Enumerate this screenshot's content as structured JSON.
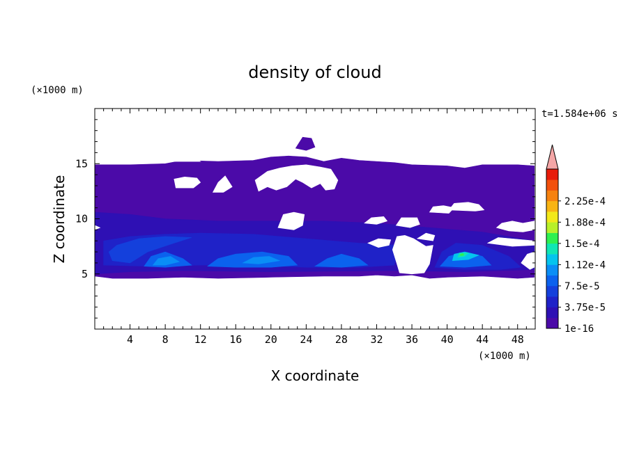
{
  "chart_data": {
    "type": "heatmap",
    "title": "density of cloud",
    "xlabel": "X coordinate",
    "ylabel": "Z coordinate",
    "x_unit": "(×1000 m)",
    "y_unit": "(×1000 m)",
    "time_label": "t=1.584e+06 s",
    "xlim": [
      0,
      50
    ],
    "ylim": [
      0,
      20
    ],
    "xticks": [
      4,
      8,
      12,
      16,
      20,
      24,
      28,
      32,
      36,
      40,
      44,
      48
    ],
    "yticks": [
      5,
      10,
      15
    ],
    "colorbar": {
      "labels": [
        "1e-16",
        "3.75e-5",
        "7.5e-5",
        "1.12e-4",
        "1.5e-4",
        "1.88e-4",
        "2.25e-4"
      ],
      "colors": [
        "#4b0aa8",
        "#2e10b4",
        "#1f22c8",
        "#1440dc",
        "#0b62ee",
        "#0a8ef6",
        "#04c4ee",
        "#10e6b4",
        "#2ef050",
        "#b8f02a",
        "#f2e81a",
        "#f8b414",
        "#f68210",
        "#f2500c",
        "#e81c0a"
      ],
      "extend_color": "#f4a6a6"
    },
    "regions": [
      {
        "level": 0,
        "poly": [
          [
            0,
            4.8
          ],
          [
            2,
            4.6
          ],
          [
            6,
            4.6
          ],
          [
            10,
            4.7
          ],
          [
            14,
            4.6
          ],
          [
            20,
            4.7
          ],
          [
            26,
            4.8
          ],
          [
            30,
            4.8
          ],
          [
            32,
            4.9
          ],
          [
            34,
            4.8
          ],
          [
            36,
            4.9
          ],
          [
            38,
            4.6
          ],
          [
            40,
            4.7
          ],
          [
            44,
            4.8
          ],
          [
            48,
            4.6
          ],
          [
            49.9,
            4.7
          ],
          [
            49.9,
            14.8
          ],
          [
            48,
            14.9
          ],
          [
            44,
            14.9
          ],
          [
            42,
            14.6
          ],
          [
            40,
            14.8
          ],
          [
            36,
            14.9
          ],
          [
            34,
            15.1
          ],
          [
            30,
            15.3
          ],
          [
            28,
            15.5
          ],
          [
            26,
            15.2
          ],
          [
            24,
            15.6
          ],
          [
            22,
            15.7
          ],
          [
            20,
            15.6
          ],
          [
            18,
            15.3
          ],
          [
            14,
            15.2
          ],
          [
            10,
            15.3
          ],
          [
            8,
            15
          ],
          [
            4,
            14.9
          ],
          [
            0,
            14.9
          ]
        ]
      },
      {
        "level": 0,
        "poly": [
          [
            22.8,
            16.4
          ],
          [
            23.6,
            17.4
          ],
          [
            24.6,
            17.3
          ],
          [
            25,
            16.5
          ],
          [
            24,
            16.2
          ]
        ]
      },
      {
        "level": 1,
        "poly": [
          [
            0,
            5
          ],
          [
            4,
            5.2
          ],
          [
            10,
            5.3
          ],
          [
            20,
            5.2
          ],
          [
            34,
            5.3
          ],
          [
            42,
            5.2
          ],
          [
            49.9,
            5.4
          ],
          [
            49.9,
            8
          ],
          [
            44,
            8.8
          ],
          [
            38,
            9.2
          ],
          [
            32,
            9.6
          ],
          [
            26,
            9.8
          ],
          [
            20,
            9.8
          ],
          [
            14,
            9.8
          ],
          [
            8,
            10
          ],
          [
            4,
            10.4
          ],
          [
            0,
            10.6
          ]
        ]
      },
      {
        "level": 2,
        "poly": [
          [
            1,
            5.8
          ],
          [
            6,
            5.7
          ],
          [
            12,
            5.8
          ],
          [
            18,
            5.8
          ],
          [
            24,
            5.6
          ],
          [
            30,
            5.6
          ],
          [
            34,
            5.8
          ],
          [
            34.6,
            7.6
          ],
          [
            30,
            7.8
          ],
          [
            24,
            8.2
          ],
          [
            18,
            8.6
          ],
          [
            12,
            8.7
          ],
          [
            8,
            8.6
          ],
          [
            4,
            8.4
          ],
          [
            1,
            8
          ]
        ]
      },
      {
        "level": 2,
        "poly": [
          [
            38.6,
            5.6
          ],
          [
            42,
            5.4
          ],
          [
            46,
            5.4
          ],
          [
            48.4,
            5.6
          ],
          [
            47,
            6.6
          ],
          [
            44,
            7.6
          ],
          [
            41,
            7.8
          ],
          [
            39.4,
            7
          ]
        ]
      },
      {
        "level": 3,
        "poly": [
          [
            2,
            6.2
          ],
          [
            4,
            6
          ],
          [
            6,
            7
          ],
          [
            9,
            7.8
          ],
          [
            11,
            8.3
          ],
          [
            8,
            8.4
          ],
          [
            5,
            8.2
          ],
          [
            2.5,
            7.6
          ],
          [
            1.6,
            7
          ]
        ]
      },
      {
        "level": 4,
        "poly": [
          [
            5.6,
            5.7
          ],
          [
            8,
            5.6
          ],
          [
            11,
            5.8
          ],
          [
            10,
            6.4
          ],
          [
            8,
            7
          ],
          [
            6.4,
            6.6
          ]
        ]
      },
      {
        "level": 4,
        "poly": [
          [
            12.8,
            5.7
          ],
          [
            16,
            5.6
          ],
          [
            20,
            5.6
          ],
          [
            23,
            5.8
          ],
          [
            22,
            6.6
          ],
          [
            19,
            7
          ],
          [
            16,
            6.8
          ],
          [
            14,
            6.4
          ]
        ]
      },
      {
        "level": 4,
        "poly": [
          [
            25,
            5.7
          ],
          [
            28,
            5.6
          ],
          [
            31,
            5.8
          ],
          [
            30,
            6.4
          ],
          [
            28,
            6.8
          ],
          [
            26.4,
            6.4
          ]
        ]
      },
      {
        "level": 4,
        "poly": [
          [
            39.2,
            5.7
          ],
          [
            42,
            5.6
          ],
          [
            45,
            5.8
          ],
          [
            44,
            6.6
          ],
          [
            42,
            7
          ],
          [
            40.2,
            6.6
          ]
        ]
      },
      {
        "level": 5,
        "poly": [
          [
            6.6,
            5.8
          ],
          [
            8,
            5.8
          ],
          [
            9.6,
            6.1
          ],
          [
            8.6,
            6.6
          ],
          [
            7.2,
            6.4
          ]
        ]
      },
      {
        "level": 5,
        "poly": [
          [
            16.8,
            6
          ],
          [
            18.6,
            5.9
          ],
          [
            21,
            6.2
          ],
          [
            19.8,
            6.6
          ],
          [
            18,
            6.5
          ]
        ]
      },
      {
        "level": 6,
        "poly": [
          [
            40.6,
            6.2
          ],
          [
            42.4,
            6.3
          ],
          [
            43.6,
            6.7
          ],
          [
            42,
            7
          ],
          [
            40.8,
            6.8
          ]
        ]
      },
      {
        "level": 7,
        "poly": [
          [
            41.2,
            6.5
          ],
          [
            42,
            6.6
          ],
          [
            42.4,
            6.9
          ],
          [
            41.4,
            6.9
          ]
        ]
      },
      {
        "level": 8,
        "poly": [
          [
            41.5,
            6.65
          ],
          [
            41.9,
            6.7
          ],
          [
            41.8,
            6.85
          ],
          [
            41.5,
            6.8
          ]
        ]
      }
    ],
    "holes": [
      [
        [
          7.5,
          15.2
        ],
        [
          8.8,
          15.7
        ],
        [
          9.6,
          16.3
        ],
        [
          10.1,
          16.1
        ],
        [
          12,
          15.2
        ]
      ],
      [
        [
          9.2,
          12.8
        ],
        [
          9,
          13.6
        ],
        [
          10.2,
          13.8
        ],
        [
          11.6,
          13.7
        ],
        [
          12,
          13.3
        ],
        [
          11.2,
          12.8
        ]
      ],
      [
        [
          13.4,
          12.4
        ],
        [
          14,
          13.3
        ],
        [
          14.8,
          13.9
        ],
        [
          15.6,
          12.9
        ],
        [
          14.6,
          12.4
        ]
      ],
      [
        [
          18.6,
          12.5
        ],
        [
          18.2,
          13.5
        ],
        [
          19.6,
          14.3
        ],
        [
          21,
          14.6
        ],
        [
          22.4,
          14.8
        ],
        [
          24,
          14.9
        ],
        [
          25.6,
          14.7
        ],
        [
          26.8,
          14.5
        ],
        [
          27.6,
          13.5
        ],
        [
          27.2,
          12.7
        ],
        [
          26.2,
          12.6
        ],
        [
          25.6,
          13.2
        ],
        [
          24.6,
          12.8
        ],
        [
          23.6,
          13.3
        ],
        [
          22.8,
          13.6
        ],
        [
          21.8,
          12.9
        ],
        [
          20.6,
          12.6
        ],
        [
          19.6,
          12.9
        ]
      ],
      [
        [
          20.8,
          9.2
        ],
        [
          21.4,
          10.4
        ],
        [
          22.6,
          10.6
        ],
        [
          23.8,
          10.4
        ],
        [
          23.6,
          9.4
        ],
        [
          22.6,
          9
        ]
      ],
      [
        [
          38,
          10.6
        ],
        [
          38.4,
          11.1
        ],
        [
          39.6,
          11.2
        ],
        [
          40.8,
          11
        ],
        [
          40.2,
          10.5
        ]
      ],
      [
        [
          40.2,
          10.8
        ],
        [
          40.8,
          11.4
        ],
        [
          42.4,
          11.5
        ],
        [
          43.6,
          11.3
        ],
        [
          44.2,
          10.8
        ],
        [
          43.2,
          10.7
        ]
      ],
      [
        [
          34.2,
          9.4
        ],
        [
          34.8,
          10.1
        ],
        [
          36.6,
          10.1
        ],
        [
          36.9,
          9.5
        ],
        [
          35.8,
          9.2
        ]
      ],
      [
        [
          45.6,
          9.2
        ],
        [
          46.2,
          9.6
        ],
        [
          47.4,
          9.8
        ],
        [
          48.6,
          9.6
        ],
        [
          49.9,
          9.8
        ],
        [
          49.9,
          9
        ],
        [
          48.6,
          8.8
        ],
        [
          47,
          8.9
        ]
      ],
      [
        [
          44.6,
          7.8
        ],
        [
          45.8,
          8.3
        ],
        [
          47.2,
          8.2
        ],
        [
          49.9,
          8
        ],
        [
          49.9,
          7.6
        ],
        [
          47.4,
          7.5
        ]
      ],
      [
        [
          0,
          9
        ],
        [
          0.6,
          9.2
        ],
        [
          0,
          9.4
        ]
      ],
      [
        [
          33.8,
          7.2
        ],
        [
          34.3,
          8.4
        ],
        [
          35.2,
          8.5
        ],
        [
          36.2,
          8.2
        ],
        [
          37.6,
          7.5
        ],
        [
          38.4,
          7.6
        ],
        [
          38,
          5.9
        ],
        [
          37.4,
          5.1
        ],
        [
          36,
          5
        ],
        [
          34.6,
          5.1
        ],
        [
          34.3,
          5.9
        ]
      ],
      [
        [
          31,
          7.8
        ],
        [
          32.2,
          8.2
        ],
        [
          33.6,
          8.1
        ],
        [
          33.4,
          7.6
        ],
        [
          32.2,
          7.4
        ]
      ],
      [
        [
          36.6,
          8.2
        ],
        [
          37.6,
          8.7
        ],
        [
          38.6,
          8.5
        ],
        [
          38.4,
          8
        ]
      ],
      [
        [
          48.4,
          6
        ],
        [
          49.1,
          6.8
        ],
        [
          49.9,
          7
        ],
        [
          49.9,
          5.6
        ],
        [
          49.4,
          5.4
        ]
      ],
      [
        [
          30.6,
          9.6
        ],
        [
          31.4,
          10.1
        ],
        [
          32.8,
          10.2
        ],
        [
          33.2,
          9.8
        ],
        [
          32,
          9.5
        ]
      ]
    ]
  }
}
